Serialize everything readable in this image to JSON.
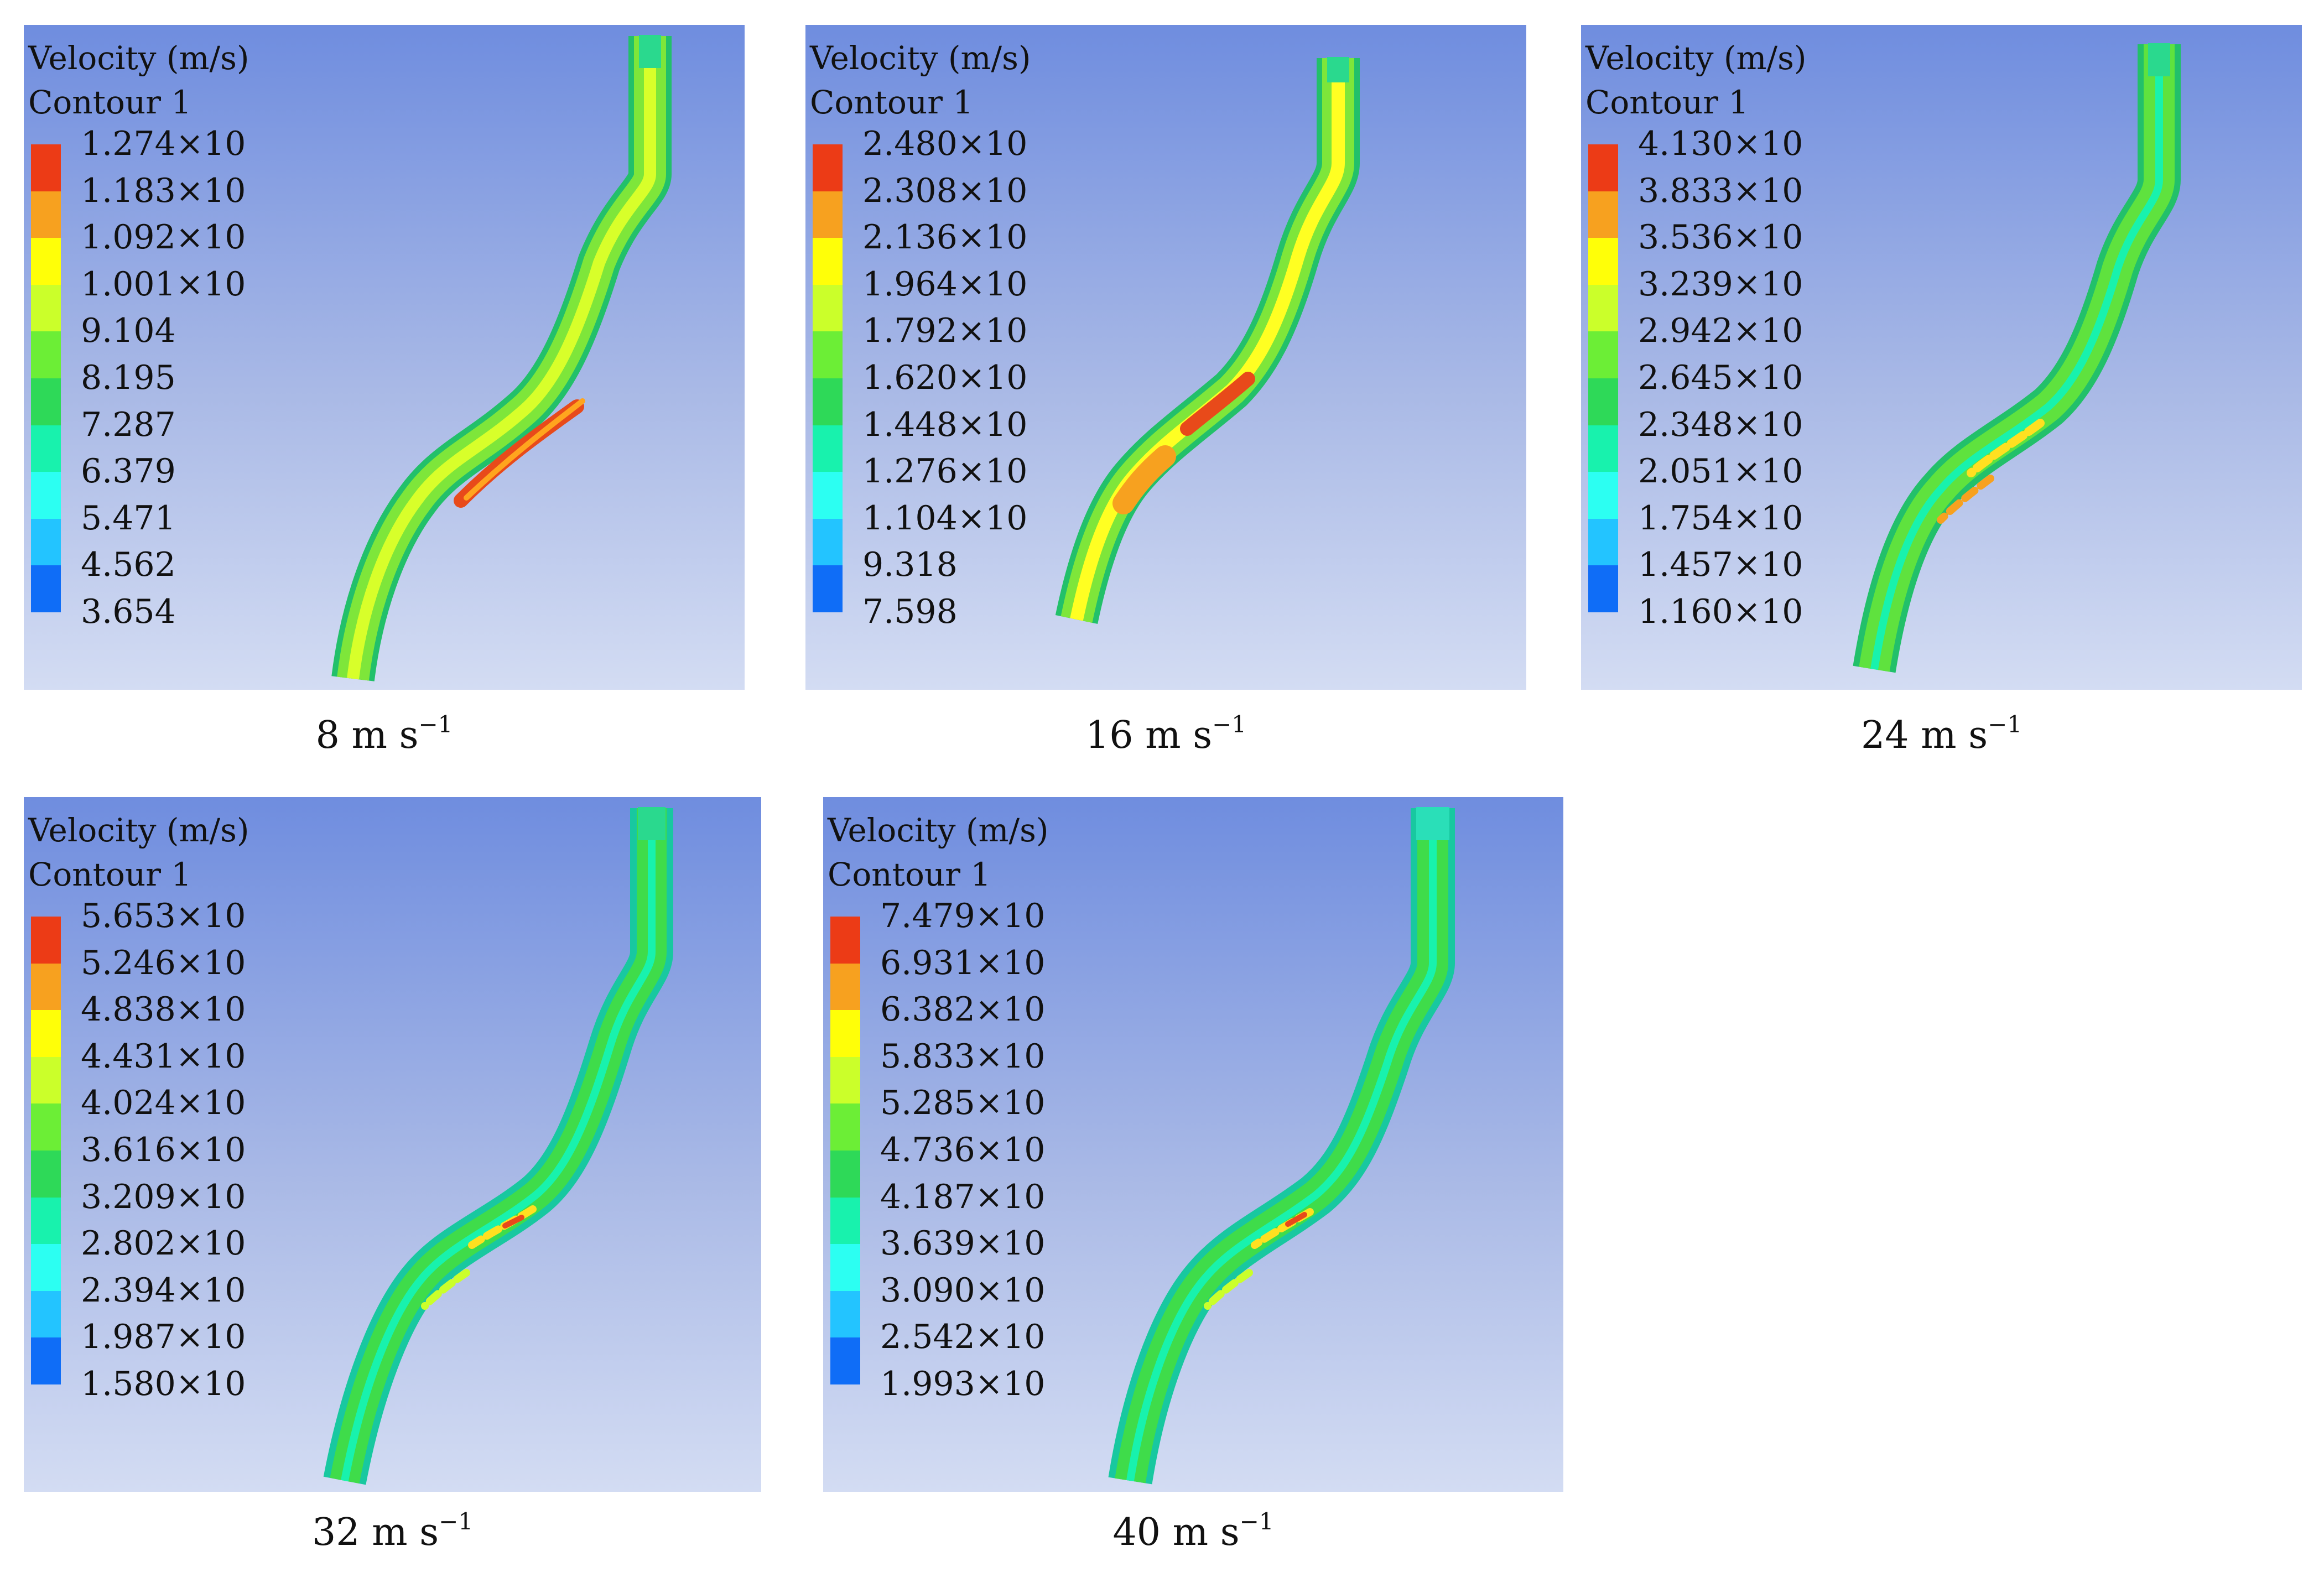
{
  "figure": {
    "legend_title_line1": "Velocity (m/s)",
    "legend_title_line2": "Contour 1",
    "color_scale": [
      "#ec3b16",
      "#f7a11f",
      "#ffff08",
      "#cbff2a",
      "#6cee36",
      "#2ed958",
      "#18f2ad",
      "#2cfff2",
      "#23c4ff",
      "#0f6df7"
    ],
    "background_colors": [
      "#6f8ddf",
      "#d3dcf3"
    ],
    "panels": [
      {
        "caption_value": "8 m s",
        "caption_exp": "−1",
        "ticks": [
          "1.274×10",
          "1.183×10",
          "1.092×10",
          "1.001×10",
          "9.104",
          "8.195",
          "7.287",
          "6.379",
          "5.471",
          "4.562",
          "3.654"
        ]
      },
      {
        "caption_value": "16 m s",
        "caption_exp": "−1",
        "ticks": [
          "2.480×10",
          "2.308×10",
          "2.136×10",
          "1.964×10",
          "1.792×10",
          "1.620×10",
          "1.448×10",
          "1.276×10",
          "1.104×10",
          "9.318",
          "7.598"
        ]
      },
      {
        "caption_value": "24 m s",
        "caption_exp": "−1",
        "ticks": [
          "4.130×10",
          "3.833×10",
          "3.536×10",
          "3.239×10",
          "2.942×10",
          "2.645×10",
          "2.348×10",
          "2.051×10",
          "1.754×10",
          "1.457×10",
          "1.160×10"
        ]
      },
      {
        "caption_value": "32 m s",
        "caption_exp": "−1",
        "ticks": [
          "5.653×10",
          "5.246×10",
          "4.838×10",
          "4.431×10",
          "4.024×10",
          "3.616×10",
          "3.209×10",
          "2.802×10",
          "2.394×10",
          "1.987×10",
          "1.580×10"
        ]
      },
      {
        "caption_value": "40 m s",
        "caption_exp": "−1",
        "ticks": [
          "7.479×10",
          "6.931×10",
          "6.382×10",
          "5.833×10",
          "5.285×10",
          "4.736×10",
          "4.187×10",
          "3.639×10",
          "3.090×10",
          "2.542×10",
          "1.993×10"
        ]
      }
    ]
  }
}
